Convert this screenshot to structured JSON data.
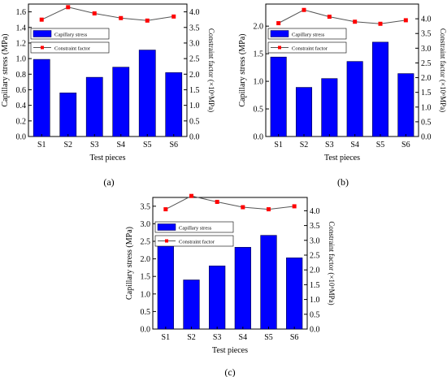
{
  "figure": {
    "colors": {
      "bar": "#0000ff",
      "bar_stroke": "#000044",
      "line": "#555555",
      "marker": "#ff0000"
    }
  },
  "chart_data": [
    {
      "type": "bar",
      "panel_label": "(a)",
      "categories": [
        "S1",
        "S2",
        "S3",
        "S4",
        "S5",
        "S6"
      ],
      "series": [
        {
          "name": "Capillary stress",
          "axis": "left",
          "values": [
            0.99,
            0.56,
            0.76,
            0.89,
            1.11,
            0.82
          ]
        },
        {
          "name": "Constraint factor",
          "axis": "right",
          "type": "line",
          "values": [
            3.75,
            4.15,
            3.95,
            3.8,
            3.72,
            3.85
          ]
        }
      ],
      "xlabel": "Test pieces",
      "ylabel": "Capillary stress (MPa)",
      "ylabel_right": "Constraint factor (×10⁶MPa)",
      "ylim": [
        0,
        1.7
      ],
      "yticks": [
        "0.0",
        "0.2",
        "0.4",
        "0.6",
        "0.8",
        "1.0",
        "1.2",
        "1.4",
        "1.6"
      ],
      "ylim_right": [
        0,
        4.25
      ],
      "yticks_right": [
        "0.0",
        "0.5",
        "1.0",
        "1.5",
        "2.0",
        "2.5",
        "3.0",
        "3.5",
        "4.0"
      ],
      "legend_position": "upper-left"
    },
    {
      "type": "bar",
      "panel_label": "(b)",
      "categories": [
        "S1",
        "S2",
        "S3",
        "S4",
        "S5",
        "S6"
      ],
      "series": [
        {
          "name": "Capillary stress",
          "axis": "left",
          "values": [
            1.44,
            0.89,
            1.05,
            1.36,
            1.71,
            1.14
          ]
        },
        {
          "name": "Constraint factor",
          "axis": "right",
          "type": "line",
          "values": [
            3.85,
            4.3,
            4.07,
            3.9,
            3.83,
            3.95
          ]
        }
      ],
      "xlabel": "Test pieces",
      "ylabel": "Capillary stress (MPa)",
      "ylabel_right": "Constraint factor (×10⁶MPa)",
      "ylim": [
        0,
        2.4
      ],
      "yticks": [
        "0.0",
        "0.5",
        "1.0",
        "1.5",
        "2.0"
      ],
      "ylim_right": [
        0,
        4.5
      ],
      "yticks_right": [
        "0.0",
        "0.5",
        "1.0",
        "1.5",
        "2.0",
        "2.5",
        "3.0",
        "3.5",
        "4.0"
      ],
      "legend_position": "upper-left"
    },
    {
      "type": "bar",
      "panel_label": "(c)",
      "categories": [
        "S1",
        "S2",
        "S3",
        "S4",
        "S5",
        "S6"
      ],
      "series": [
        {
          "name": "Capillary stress",
          "axis": "left",
          "values": [
            2.45,
            1.4,
            1.8,
            2.33,
            2.67,
            2.03
          ]
        },
        {
          "name": "Constraint factor",
          "axis": "right",
          "type": "line",
          "values": [
            4.05,
            4.5,
            4.3,
            4.12,
            4.05,
            4.15
          ]
        }
      ],
      "xlabel": "Test pieces",
      "ylabel": "Capillary stress (MPa)",
      "ylabel_right": "Constraint factor (×10⁶MPa)",
      "ylim": [
        0,
        3.75
      ],
      "yticks": [
        "0.0",
        "0.5",
        "1.0",
        "1.5",
        "2.0",
        "2.5",
        "3.0",
        "3.5"
      ],
      "ylim_right": [
        0,
        4.45
      ],
      "yticks_right": [
        "0.0",
        "0.5",
        "1.0",
        "1.5",
        "2.0",
        "2.5",
        "3.0",
        "3.5",
        "4.0"
      ],
      "legend_position": "upper-left"
    }
  ]
}
